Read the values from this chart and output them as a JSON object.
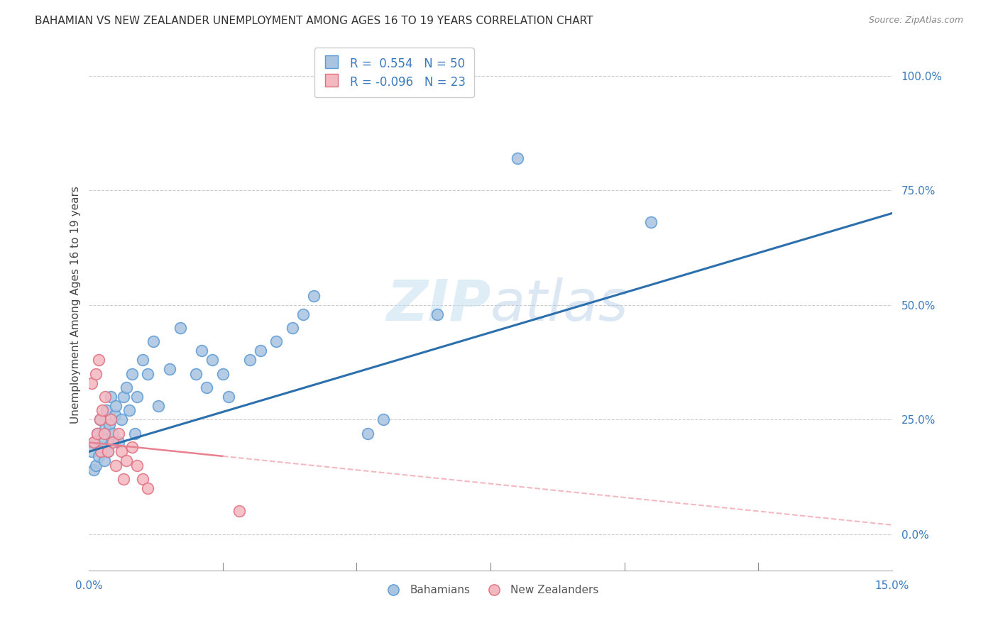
{
  "title": "BAHAMIAN VS NEW ZEALANDER UNEMPLOYMENT AMONG AGES 16 TO 19 YEARS CORRELATION CHART",
  "source": "Source: ZipAtlas.com",
  "ylabel": "Unemployment Among Ages 16 to 19 years",
  "ytick_vals": [
    0,
    25,
    50,
    75,
    100
  ],
  "xmin": 0,
  "xmax": 15,
  "ymin": -8,
  "ymax": 108,
  "bahamian_color": "#a8c4e0",
  "bahamian_edge_color": "#5b9bd5",
  "nz_color": "#f4b8c1",
  "nz_edge_color": "#e07080",
  "bahamian_line_color": "#2c6fad",
  "nz_line_color": "#e88090",
  "nz_dash_color": "#f4b8c1",
  "watermark_color": "#d4e8f5",
  "legend_r1_val": "0.554",
  "legend_n1_val": "50",
  "legend_r2_val": "-0.096",
  "legend_n2_val": "23",
  "bahamians_x": [
    0.05,
    0.08,
    0.1,
    0.12,
    0.15,
    0.18,
    0.2,
    0.22,
    0.25,
    0.28,
    0.3,
    0.32,
    0.35,
    0.38,
    0.4,
    0.42,
    0.45,
    0.48,
    0.5,
    0.55,
    0.6,
    0.65,
    0.7,
    0.75,
    0.8,
    0.85,
    0.9,
    1.0,
    1.1,
    1.2,
    1.3,
    1.5,
    1.7,
    2.0,
    2.1,
    2.2,
    2.3,
    2.5,
    2.6,
    3.0,
    3.2,
    3.5,
    3.8,
    4.0,
    4.2,
    5.2,
    5.5,
    6.5,
    8.0,
    10.5
  ],
  "bahamians_y": [
    18,
    14,
    20,
    15,
    22,
    17,
    25,
    19,
    21,
    16,
    23,
    27,
    18,
    24,
    30,
    20,
    22,
    26,
    28,
    20,
    25,
    30,
    32,
    27,
    35,
    22,
    30,
    38,
    35,
    42,
    28,
    36,
    45,
    35,
    40,
    32,
    38,
    35,
    30,
    38,
    40,
    42,
    45,
    48,
    52,
    22,
    25,
    48,
    82,
    68
  ],
  "nz_x": [
    0.05,
    0.08,
    0.12,
    0.15,
    0.18,
    0.2,
    0.22,
    0.25,
    0.28,
    0.3,
    0.35,
    0.4,
    0.45,
    0.5,
    0.55,
    0.6,
    0.65,
    0.7,
    0.8,
    0.9,
    1.0,
    1.1,
    2.8
  ],
  "nz_y": [
    33,
    20,
    35,
    22,
    38,
    25,
    18,
    27,
    22,
    30,
    18,
    25,
    20,
    15,
    22,
    18,
    12,
    16,
    19,
    15,
    12,
    10,
    5
  ]
}
